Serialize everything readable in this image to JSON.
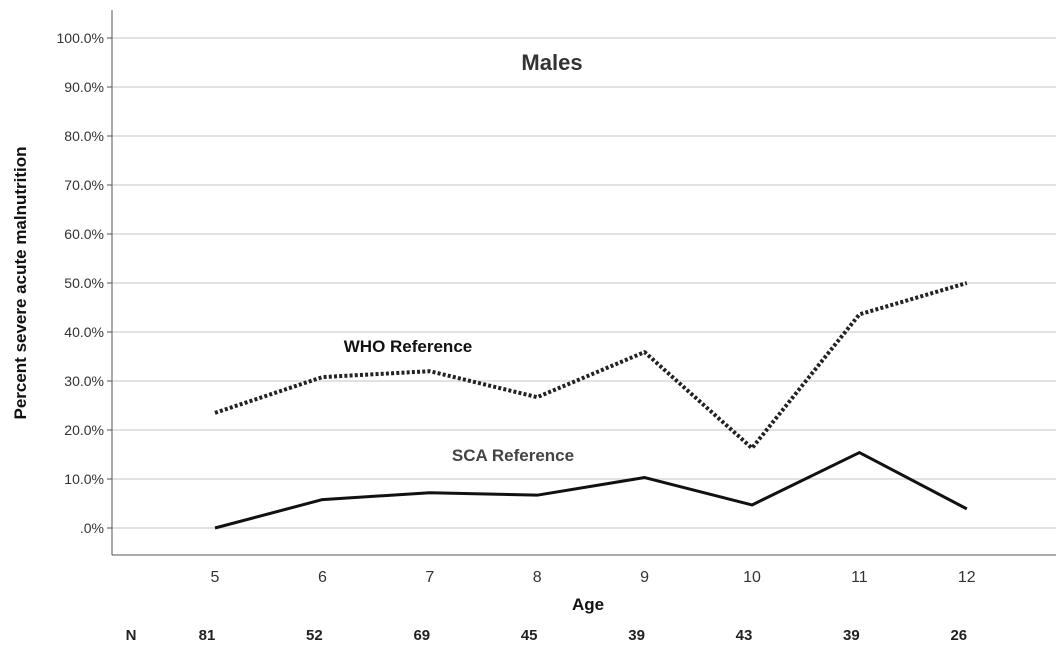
{
  "chart_data": {
    "type": "line",
    "title": "Males",
    "xlabel": "Age",
    "ylabel": "Percent severe acute malnutrition",
    "categories": [
      "5",
      "6",
      "7",
      "8",
      "9",
      "10",
      "11",
      "12"
    ],
    "ylim": [
      0,
      100
    ],
    "yticks": [
      ".0%",
      "10.0%",
      "20.0%",
      "30.0%",
      "40.0%",
      "50.0%",
      "60.0%",
      "70.0%",
      "80.0%",
      "90.0%",
      "100.0%"
    ],
    "grid": true,
    "series": [
      {
        "name": "WHO Reference",
        "style": "dotted",
        "color": "#222222",
        "values": [
          23.5,
          30.8,
          32.0,
          26.7,
          35.9,
          16.3,
          43.6,
          50.0
        ]
      },
      {
        "name": "SCA Reference",
        "style": "solid",
        "color": "#111111",
        "values": [
          0.0,
          5.8,
          7.2,
          6.7,
          10.3,
          4.7,
          15.4,
          3.9
        ]
      }
    ],
    "n_row": {
      "label": "N",
      "values": [
        "81",
        "52",
        "69",
        "45",
        "39",
        "43",
        "39",
        "26"
      ]
    }
  }
}
